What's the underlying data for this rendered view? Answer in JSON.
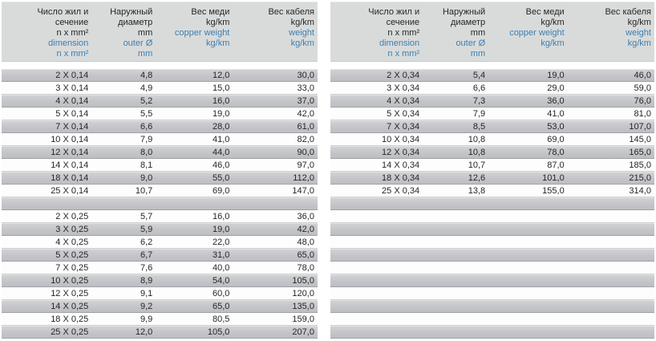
{
  "colors": {
    "header_bg": "#d9dbdb",
    "row_gray": "#c4c5c9",
    "row_white": "#fdfdfd",
    "blue_text": "#3e7fb0",
    "dark_text": "#262626"
  },
  "header_columns": [
    {
      "ru": [
        "Число жил и",
        "сечение",
        "n x mm²"
      ],
      "en": [
        "dimension",
        "n x mm²"
      ]
    },
    {
      "ru": [
        "Наружный",
        "диаметр",
        "mm"
      ],
      "en": [
        "outer Ø",
        "mm"
      ]
    },
    {
      "ru": [
        "Вес меди",
        "kg/km"
      ],
      "en": [
        "copper weight",
        "kg/km"
      ]
    },
    {
      "ru": [
        "Вес кабеля",
        "kg/km"
      ],
      "en": [
        "weight",
        "kg/km"
      ]
    }
  ],
  "tables": [
    {
      "name": "left",
      "rows": [
        [
          "2 X 0,14",
          "4,8",
          "12,0",
          "30,0"
        ],
        [
          "3 X 0,14",
          "4,9",
          "15,0",
          "33,0"
        ],
        [
          "4 X 0,14",
          "5,2",
          "16,0",
          "37,0"
        ],
        [
          "5 X 0,14",
          "5,5",
          "19,0",
          "42,0"
        ],
        [
          "7 X 0,14",
          "6,6",
          "28,0",
          "61,0"
        ],
        [
          "10 X 0,14",
          "7,9",
          "41,0",
          "82,0"
        ],
        [
          "12 X 0,14",
          "8,0",
          "44,0",
          "90,0"
        ],
        [
          "14 X 0,14",
          "8,1",
          "46,0",
          "97,0"
        ],
        [
          "18 X 0,14",
          "9,0",
          "55,0",
          "112,0"
        ],
        [
          "25 X 0,14",
          "10,7",
          "69,0",
          "147,0"
        ],
        [],
        [
          "2 X 0,25",
          "5,7",
          "16,0",
          "36,0"
        ],
        [
          "3 X 0,25",
          "5,9",
          "19,0",
          "42,0"
        ],
        [
          "4 X 0,25",
          "6,2",
          "22,0",
          "48,0"
        ],
        [
          "5 X 0,25",
          "6,7",
          "31,0",
          "65,0"
        ],
        [
          "7 X 0,25",
          "7,6",
          "40,0",
          "78,0"
        ],
        [
          "10 X 0,25",
          "8,9",
          "54,0",
          "105,0"
        ],
        [
          "12 X 0,25",
          "9,1",
          "60,0",
          "120,0"
        ],
        [
          "14 X 0,25",
          "9,2",
          "65,0",
          "135,0"
        ],
        [
          "18 X 0,25",
          "9,9",
          "80,5",
          "159,0"
        ],
        [
          "25 X 0,25",
          "12,0",
          "105,0",
          "207,0"
        ]
      ]
    },
    {
      "name": "right",
      "rows": [
        [
          "2 X 0,34",
          "5,4",
          "19,0",
          "46,0"
        ],
        [
          "3 X 0,34",
          "6,6",
          "29,0",
          "59,0"
        ],
        [
          "4 X 0,34",
          "7,3",
          "36,0",
          "76,0"
        ],
        [
          "5 X 0,34",
          "7,9",
          "41,0",
          "81,0"
        ],
        [
          "7 X 0,34",
          "8,5",
          "53,0",
          "107,0"
        ],
        [
          "10 X 0,34",
          "10,8",
          "69,0",
          "145,0"
        ],
        [
          "12 X 0,34",
          "10,8",
          "78,0",
          "165,0"
        ],
        [
          "14 X 0,34",
          "10,7",
          "87,0",
          "185,0"
        ],
        [
          "18 X 0,34",
          "12,6",
          "101,0",
          "215,0"
        ],
        [
          "25 X 0,34",
          "13,8",
          "155,0",
          "314,0"
        ],
        [],
        [],
        [],
        [],
        [],
        [],
        [],
        [],
        [],
        [],
        []
      ]
    }
  ]
}
